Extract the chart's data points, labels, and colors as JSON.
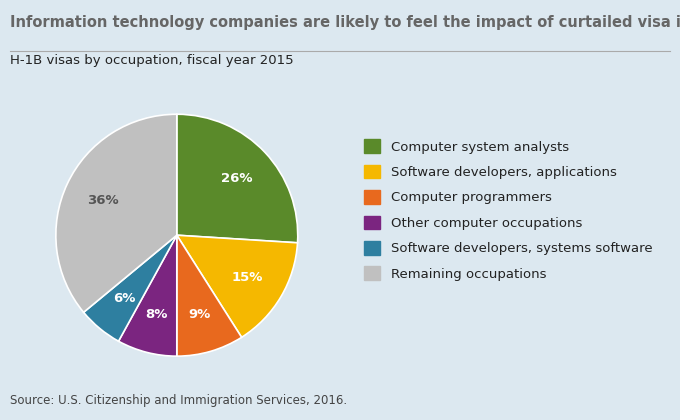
{
  "title": "Information technology companies are likely to feel the impact of curtailed visa issuance",
  "subtitle": "H-1B visas by occupation, fiscal year 2015",
  "source": "Source: U.S. Citizenship and Immigration Services, 2016.",
  "labels": [
    "Computer system analysts",
    "Software developers, applications",
    "Computer programmers",
    "Other computer occupations",
    "Software developers, systems software",
    "Remaining occupations"
  ],
  "values": [
    26,
    15,
    9,
    8,
    6,
    36
  ],
  "colors": [
    "#5a8a2a",
    "#f5b800",
    "#e8691e",
    "#7b2580",
    "#2e7fa0",
    "#c0c0c0"
  ],
  "pct_labels": [
    "26%",
    "15%",
    "9%",
    "8%",
    "6%",
    "36%"
  ],
  "pct_colors": [
    "white",
    "white",
    "white",
    "white",
    "white",
    "#555555"
  ],
  "background_color": "#dce8f0",
  "title_color": "#666666",
  "subtitle_color": "#222222",
  "source_color": "#444444",
  "startangle": 90,
  "title_fontsize": 10.5,
  "subtitle_fontsize": 9.5,
  "legend_fontsize": 9.5,
  "pct_fontsize": 9.5,
  "source_fontsize": 8.5
}
